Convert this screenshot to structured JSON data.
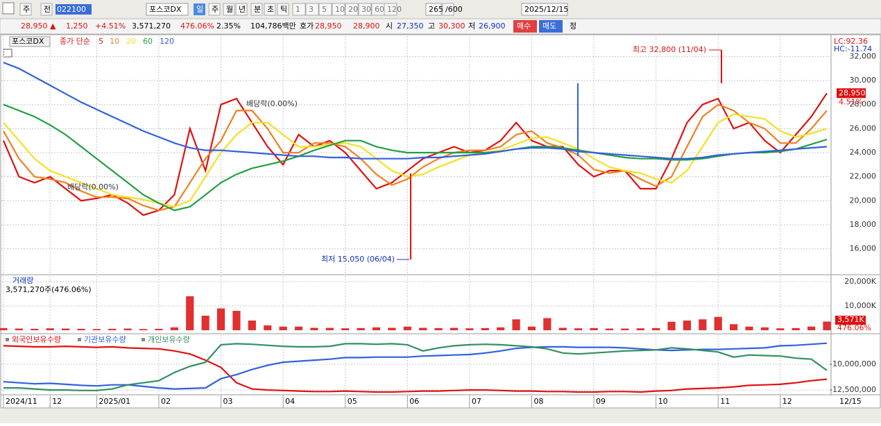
{
  "toolbar": {
    "items": [
      "주",
      "전",
      "022100",
      "포스코DX",
      "일",
      "주",
      "월",
      "년",
      "분",
      "초",
      "틱",
      "1",
      "3",
      "5",
      "10",
      "20",
      "30",
      "60",
      "120",
      "265",
      "/600",
      "2025/12/15"
    ]
  },
  "quote": {
    "items": [
      "28,950 ▲",
      "1,250",
      "+4.51%",
      "3,571,270",
      "476.06%",
      "2.35%",
      "104,786백만",
      "호가",
      "28,950",
      "28,900",
      "시",
      "27,350",
      "고",
      "30,300",
      "저",
      "26,900",
      "매수",
      "매도",
      "정"
    ]
  },
  "chart_data": [
    {
      "type": "line",
      "title": "포스코DX",
      "subtitle": "종가 단순",
      "categories": [
        "2024/11",
        null,
        null,
        "12",
        null,
        null,
        "2025/01",
        null,
        null,
        null,
        "02",
        null,
        null,
        null,
        "03",
        null,
        null,
        null,
        "04",
        null,
        null,
        null,
        "05",
        null,
        null,
        null,
        "06",
        null,
        null,
        null,
        "07",
        null,
        null,
        null,
        "08",
        null,
        null,
        null,
        "09",
        null,
        null,
        null,
        "10",
        null,
        null,
        null,
        "11",
        null,
        null,
        null,
        "12",
        null,
        null,
        null
      ],
      "x_end_label": "12/15",
      "ylim": [
        13900,
        33700
      ],
      "yticks": [
        {
          "value": 16000,
          "label": "16,000"
        },
        {
          "value": 18000,
          "label": "18,000"
        },
        {
          "value": 20000,
          "label": "20,000"
        },
        {
          "value": 22000,
          "label": "22,000"
        },
        {
          "value": 24000,
          "label": "24,000"
        },
        {
          "value": 26000,
          "label": "26,000"
        },
        {
          "value": 28000,
          "label": "28,000"
        },
        {
          "value": 30000,
          "label": "30,000"
        },
        {
          "value": 32000,
          "label": "32,000"
        }
      ],
      "grid": true,
      "series": [
        {
          "name": "5",
          "color": "#e01010",
          "values": [
            25000,
            22000,
            21500,
            22000,
            21000,
            20000,
            20200,
            20500,
            19800,
            18800,
            19200,
            20500,
            26000,
            22500,
            28000,
            28500,
            26500,
            24500,
            23000,
            25500,
            24500,
            25000,
            24000,
            22500,
            21000,
            21500,
            22500,
            23500,
            24000,
            24500,
            24000,
            24200,
            25000,
            26500,
            25000,
            24500,
            24500,
            23000,
            22000,
            22500,
            22500,
            21000,
            21000,
            23500,
            26500,
            28000,
            28500,
            26000,
            26500,
            25000,
            24000,
            25500,
            27000,
            28950
          ]
        },
        {
          "name": "10",
          "color": "#f08020",
          "values": [
            25800,
            23500,
            22000,
            21800,
            21500,
            20800,
            20300,
            20300,
            20200,
            19600,
            19200,
            19500,
            21500,
            23500,
            25000,
            27500,
            27500,
            26000,
            24000,
            24000,
            24800,
            24800,
            24500,
            23500,
            22200,
            21300,
            21800,
            22800,
            23500,
            24000,
            24200,
            24200,
            24500,
            25500,
            25800,
            24800,
            24400,
            23800,
            22600,
            22300,
            22500,
            21800,
            21200,
            22000,
            24500,
            27000,
            28000,
            27500,
            26500,
            26000,
            24800,
            24800,
            26000,
            27500
          ]
        },
        {
          "name": "20",
          "color": "#f5e020",
          "values": [
            26500,
            25000,
            23500,
            22500,
            22000,
            21500,
            21000,
            20500,
            20300,
            20100,
            19800,
            19500,
            20000,
            22000,
            24000,
            25500,
            26500,
            26500,
            25500,
            24500,
            24500,
            24700,
            24800,
            24500,
            23500,
            22500,
            22000,
            22200,
            22800,
            23300,
            23800,
            24000,
            24200,
            24700,
            25200,
            25300,
            24800,
            24300,
            23500,
            22800,
            22500,
            22300,
            21800,
            21500,
            22500,
            24500,
            26500,
            27200,
            27000,
            26800,
            25800,
            25300,
            25600,
            26000
          ]
        },
        {
          "name": "60",
          "color": "#20a040",
          "values": [
            28000,
            27500,
            27000,
            26300,
            25500,
            24500,
            23500,
            22500,
            21500,
            20500,
            19800,
            19200,
            19500,
            20500,
            21500,
            22200,
            22700,
            23000,
            23300,
            23700,
            24200,
            24600,
            25000,
            25000,
            24500,
            24200,
            24000,
            24000,
            24000,
            24000,
            24000,
            24000,
            24100,
            24300,
            24500,
            24500,
            24400,
            24200,
            24000,
            23800,
            23600,
            23500,
            23500,
            23400,
            23400,
            23500,
            23700,
            23900,
            24000,
            24000,
            24100,
            24300,
            24700,
            25100
          ]
        },
        {
          "name": "120",
          "color": "#3060e0",
          "values": [
            31500,
            31000,
            30300,
            29600,
            28900,
            28200,
            27600,
            27000,
            26400,
            25800,
            25300,
            24800,
            24400,
            24200,
            24200,
            24100,
            24000,
            23900,
            23800,
            23700,
            23700,
            23600,
            23600,
            23500,
            23500,
            23500,
            23500,
            23600,
            23600,
            23700,
            23800,
            23900,
            24100,
            24300,
            24400,
            24400,
            24300,
            24100,
            24000,
            23900,
            23800,
            23700,
            23600,
            23500,
            23500,
            23600,
            23800,
            23900,
            24000,
            24100,
            24200,
            24300,
            24400,
            24500
          ]
        }
      ],
      "annotations": {
        "high": "최고 32,800 (11/04)",
        "low": "최저 15,050 (06/04)",
        "dividend": "배당락(0.00%)",
        "lc": "LC:92.36",
        "hc": "HC:-11.74",
        "price_tag": "28,950",
        "change_tag": "4.51%"
      }
    },
    {
      "type": "bar",
      "title": "거래량",
      "subtitle": "3,571,270주(476.06%)",
      "color": "#e03030",
      "ylim": [
        0,
        22300000
      ],
      "yticks": [
        {
          "value": 10000000,
          "label": "10,000K"
        },
        {
          "value": 20000000,
          "label": "20,000K"
        }
      ],
      "grid": true,
      "values": [
        900000,
        700000,
        600000,
        800000,
        700000,
        600000,
        500000,
        600000,
        700000,
        500000,
        600000,
        1200000,
        14000000,
        6000000,
        9000000,
        8000000,
        4000000,
        2000000,
        1500000,
        1500000,
        1000000,
        1000000,
        800000,
        900000,
        1200000,
        1000000,
        1500000,
        1000000,
        900000,
        1000000,
        800000,
        900000,
        1200000,
        4500000,
        1500000,
        5000000,
        1000000,
        800000,
        900000,
        700000,
        700000,
        800000,
        900000,
        3500000,
        4000000,
        4500000,
        5500000,
        2500000,
        1500000,
        1200000,
        800000,
        900000,
        1500000,
        3571270
      ],
      "annotations": {
        "volume_tag": "3,571K",
        "ratio_tag": "476.06%"
      }
    },
    {
      "type": "line",
      "ylim": [
        -12900000,
        -7160000
      ],
      "yticks": [
        {
          "value": -10000000,
          "label": "-10,000,000"
        },
        {
          "value": -12500000,
          "label": "-12,500,000"
        }
      ],
      "grid": true,
      "series": [
        {
          "name": "외국인보유수량",
          "color": "#e01010",
          "values": [
            -8200000,
            -8250000,
            -8300000,
            -8300000,
            -8250000,
            -8300000,
            -8350000,
            -8300000,
            -8400000,
            -8450000,
            -8500000,
            -8700000,
            -9000000,
            -9600000,
            -10300000,
            -11800000,
            -12400000,
            -12500000,
            -12550000,
            -12600000,
            -12650000,
            -12650000,
            -12600000,
            -12650000,
            -12700000,
            -12700000,
            -12650000,
            -12600000,
            -12600000,
            -12550000,
            -12500000,
            -12500000,
            -12550000,
            -12600000,
            -12600000,
            -12650000,
            -12650000,
            -12700000,
            -12700000,
            -12650000,
            -12650000,
            -12700000,
            -12600000,
            -12550000,
            -12400000,
            -12350000,
            -12300000,
            -12200000,
            -12050000,
            -12000000,
            -11950000,
            -11800000,
            -11600000,
            -11450000
          ]
        },
        {
          "name": "기관보유수량",
          "color": "#3060e0",
          "values": [
            -11700000,
            -11800000,
            -11900000,
            -11850000,
            -11950000,
            -12050000,
            -12100000,
            -12000000,
            -12000000,
            -12150000,
            -12300000,
            -12400000,
            -12350000,
            -12300000,
            -11400000,
            -11000000,
            -10500000,
            -10100000,
            -9800000,
            -9700000,
            -9600000,
            -9500000,
            -9350000,
            -9350000,
            -9300000,
            -9300000,
            -9300000,
            -9200000,
            -9150000,
            -9100000,
            -9050000,
            -8900000,
            -8700000,
            -8450000,
            -8350000,
            -8300000,
            -8300000,
            -8350000,
            -8350000,
            -8350000,
            -8400000,
            -8500000,
            -8600000,
            -8650000,
            -8600000,
            -8550000,
            -8550000,
            -8500000,
            -8450000,
            -8400000,
            -8200000,
            -8150000,
            -8050000,
            -7950000
          ]
        },
        {
          "name": "개인보유수량",
          "color": "#309060",
          "values": [
            -12300000,
            -12300000,
            -12400000,
            -12500000,
            -12500000,
            -12550000,
            -12550000,
            -12400000,
            -12000000,
            -11800000,
            -11600000,
            -10800000,
            -10200000,
            -9800000,
            -8100000,
            -8000000,
            -8050000,
            -8150000,
            -8250000,
            -8300000,
            -8300000,
            -8250000,
            -8000000,
            -8000000,
            -8050000,
            -8000000,
            -8100000,
            -8700000,
            -8400000,
            -8200000,
            -8100000,
            -8050000,
            -8100000,
            -8200000,
            -8300000,
            -8500000,
            -8900000,
            -9000000,
            -8900000,
            -8800000,
            -8700000,
            -8650000,
            -8600000,
            -8400000,
            -8500000,
            -8650000,
            -8800000,
            -9300000,
            -9100000,
            -9150000,
            -9200000,
            -9400000,
            -9500000,
            -10600000
          ]
        }
      ]
    }
  ]
}
